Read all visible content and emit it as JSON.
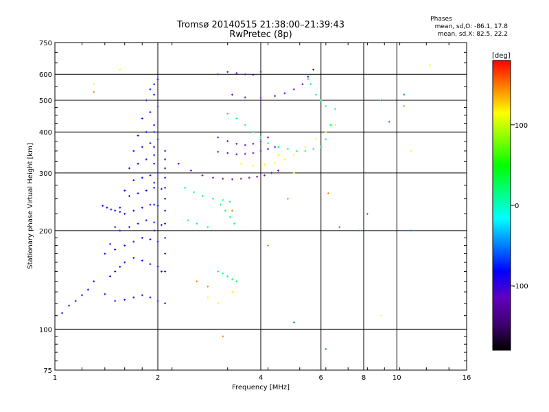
{
  "chart_data": {
    "type": "scatter",
    "title": "Tromsø 20140515 21:38:00–21:39:43",
    "subtitle": "RwPretec (8p)",
    "xlabel": "Frequency [MHz]",
    "ylabel": "Stationary phase Virtual Height [km]",
    "x_scale": "log",
    "y_scale": "log",
    "xlim": [
      1,
      16
    ],
    "ylim": [
      75,
      750
    ],
    "x_ticks": [
      1,
      2,
      4,
      6,
      8,
      10,
      16
    ],
    "x_tick_labels": [
      "1",
      "2",
      "4",
      "6",
      "8",
      "10",
      "16"
    ],
    "x_grid": [
      2,
      4,
      6,
      8,
      10
    ],
    "y_ticks": [
      75,
      100,
      200,
      300,
      400,
      500,
      600,
      750
    ],
    "y_tick_labels": [
      "75",
      "100",
      "200",
      "300",
      "400",
      "500",
      "600",
      "750"
    ],
    "y_grid": [
      100,
      200,
      300,
      400,
      500,
      600
    ],
    "grid": true,
    "phases_note": {
      "title": "Phases",
      "line1": "mean, sd,O: -86.1, 17.8",
      "line2": "mean, sd,X:  82.5, 22.2"
    },
    "colorbar": {
      "unit": "[deg]",
      "range": [
        -180,
        180
      ],
      "ticks": [
        100,
        0,
        -100
      ],
      "tick_labels": [
        "100",
        "0",
        "-100"
      ],
      "colors": [
        "#000000",
        "#400070",
        "#6000c0",
        "#0000ff",
        "#0080ff",
        "#00ffff",
        "#00ff80",
        "#00ff00",
        "#80ff00",
        "#ffff00",
        "#ff8000",
        "#ff0000"
      ]
    },
    "series": [
      {
        "color_deg": -95,
        "x": [
          1.05,
          1.1,
          1.15,
          1.2,
          1.25,
          1.3,
          1.4,
          1.5,
          1.6,
          1.7,
          1.8,
          1.9,
          2.0,
          2.1,
          1.45,
          1.5,
          1.55,
          1.6,
          1.7,
          1.8,
          1.9,
          2.0,
          2.05,
          1.4,
          1.5,
          1.6,
          1.7,
          1.8,
          1.9,
          2.0,
          1.45,
          1.55,
          1.65,
          1.75,
          1.85,
          1.95,
          2.05,
          1.5,
          1.6,
          1.7,
          1.8,
          1.9,
          2.0,
          1.55,
          1.65,
          1.75,
          1.85,
          1.95,
          2.05,
          1.6,
          1.7,
          1.8,
          1.9,
          2.0,
          1.65,
          1.75,
          1.85,
          1.95,
          1.7,
          1.8,
          1.9,
          2.0,
          1.75,
          1.85,
          1.95,
          1.8,
          1.9,
          2.0,
          1.85,
          1.95,
          1.9,
          1.95,
          2.0,
          2.1,
          2.1,
          2.1,
          2.1,
          2.1,
          2.1,
          2.1,
          2.1,
          2.1,
          2.1,
          2.1,
          1.95,
          1.95,
          1.95,
          1.95,
          1.95,
          1.95,
          1.42,
          1.46,
          1.5,
          1.38,
          1.55
        ],
        "y": [
          112,
          118,
          122,
          127,
          132,
          140,
          128,
          122,
          123,
          125,
          127,
          125,
          122,
          120,
          145,
          150,
          155,
          160,
          165,
          162,
          158,
          155,
          150,
          170,
          175,
          180,
          185,
          190,
          188,
          185,
          182,
          200,
          205,
          210,
          215,
          212,
          208,
          205,
          225,
          230,
          235,
          240,
          238,
          235,
          255,
          260,
          265,
          270,
          268,
          265,
          285,
          290,
          295,
          300,
          310,
          320,
          330,
          340,
          350,
          360,
          370,
          380,
          390,
          400,
          420,
          440,
          460,
          480,
          500,
          520,
          540,
          560,
          580,
          150,
          170,
          190,
          210,
          230,
          250,
          270,
          290,
          310,
          330,
          350,
          200,
          240,
          280,
          320,
          360,
          400,
          235,
          232,
          230,
          238,
          228
        ]
      },
      {
        "color_deg": -100,
        "x": [
          2.3,
          2.5,
          2.7,
          2.9,
          3.1,
          3.3,
          3.5,
          3.7,
          3.9,
          4.1,
          4.3,
          4.5,
          3.0,
          3.2,
          3.4,
          3.6,
          3.8,
          4.0,
          4.2,
          4.4,
          3.0,
          3.2,
          3.4,
          3.6,
          3.8,
          4.0,
          4.2,
          3.0,
          3.2,
          3.4,
          3.6,
          3.8,
          4.0,
          3.3,
          3.6,
          4.0,
          4.4,
          4.7,
          5.0,
          5.3,
          5.5,
          5.7
        ],
        "y": [
          320,
          305,
          295,
          290,
          288,
          287,
          288,
          290,
          292,
          295,
          300,
          305,
          348,
          345,
          342,
          343,
          345,
          350,
          355,
          360,
          385,
          375,
          368,
          365,
          368,
          375,
          385,
          600,
          610,
          605,
          600,
          598,
          610,
          520,
          510,
          508,
          515,
          525,
          540,
          560,
          590,
          620
        ]
      },
      {
        "color_deg": 30,
        "x": [
          3.2,
          3.4,
          3.6,
          3.8,
          4.0,
          4.2,
          4.5,
          4.8,
          5.1,
          5.4,
          5.7,
          6.0,
          6.2,
          6.4,
          6.6,
          5.5,
          5.6,
          5.8,
          6.0,
          6.2,
          3.0,
          3.1,
          3.2,
          3.3,
          3.4,
          3.05,
          3.15,
          3.25,
          3.35
        ],
        "y": [
          455,
          440,
          420,
          400,
          385,
          370,
          360,
          355,
          350,
          350,
          355,
          360,
          380,
          420,
          470,
          580,
          560,
          520,
          500,
          480,
          150,
          148,
          145,
          142,
          140,
          240,
          230,
          220,
          210
        ]
      },
      {
        "color_deg": 110,
        "x": [
          3.5,
          3.8,
          4.1,
          4.4,
          4.7,
          5.0,
          5.4,
          5.8,
          6.2,
          6.6,
          1.3,
          1.55,
          4.5,
          5.0,
          9.0,
          11.0,
          12.5,
          2.8,
          3.0,
          3.3
        ],
        "y": [
          320,
          315,
          318,
          322,
          330,
          340,
          360,
          380,
          400,
          420,
          560,
          620,
          340,
          300,
          110,
          350,
          640,
          125,
          120,
          130
        ]
      },
      {
        "color_deg": 150,
        "x": [
          1.3,
          2.6,
          2.8,
          3.1,
          4.2,
          4.8,
          3.3,
          6.3,
          10.5
        ],
        "y": [
          530,
          140,
          135,
          95,
          180,
          250,
          230,
          260,
          480
        ]
      },
      {
        "color_deg": 0,
        "x": [
          2.4,
          2.55,
          2.7,
          2.9,
          3.1,
          3.25,
          2.45,
          2.6,
          2.8
        ],
        "y": [
          270,
          262,
          255,
          250,
          248,
          245,
          215,
          210,
          205
        ]
      },
      {
        "color_deg": -60,
        "x": [
          9.5,
          10.5,
          11.0,
          6.8,
          7.8,
          8.2,
          9.0,
          5.0,
          6.2
        ],
        "y": [
          430,
          520,
          200,
          205,
          200,
          225,
          500,
          105,
          87
        ]
      }
    ]
  }
}
